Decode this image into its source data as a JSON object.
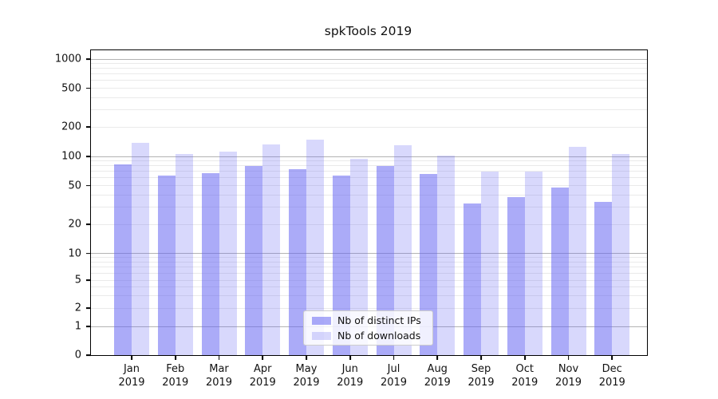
{
  "title": "spkTools 2019",
  "legend": {
    "items": [
      {
        "label": "Nb of distinct IPs",
        "color": "rgba(100,100,242,0.54)"
      },
      {
        "label": "Nb of downloads",
        "color": "rgba(100,100,242,0.25)"
      }
    ]
  },
  "chart_data": {
    "type": "bar",
    "title": "spkTools 2019",
    "xlabel": "",
    "ylabel": "",
    "y_scale": "symlog",
    "ylim": [
      0,
      1400
    ],
    "grid": "horizontal, major + minor",
    "legend_position": "lower center",
    "categories": [
      "Jan",
      "Feb",
      "Mar",
      "Apr",
      "May",
      "Jun",
      "Jul",
      "Aug",
      "Sep",
      "Oct",
      "Nov",
      "Dec"
    ],
    "year": "2019",
    "y_tick_labels": [
      "1000",
      "500",
      "200",
      "100",
      "50",
      "20",
      "10",
      "5",
      "2",
      "1",
      "0"
    ],
    "y_tick_values": [
      1000,
      500,
      200,
      100,
      50,
      20,
      10,
      5,
      2,
      1,
      0
    ],
    "series": [
      {
        "name": "Nb of distinct IPs",
        "color": "rgba(100,100,242,0.54)",
        "values": [
          83,
          63,
          67,
          79,
          74,
          63,
          79,
          66,
          33,
          38,
          48,
          34
        ]
      },
      {
        "name": "Nb of downloads",
        "color": "rgba(100,100,242,0.25)",
        "values": [
          137,
          105,
          112,
          133,
          148,
          95,
          131,
          101,
          70,
          70,
          125,
          106
        ]
      }
    ],
    "colors": {
      "grid_major": "#b3b3b3",
      "grid_minor": "#eaeaea",
      "axis": "#000000",
      "text": "#111111"
    }
  }
}
